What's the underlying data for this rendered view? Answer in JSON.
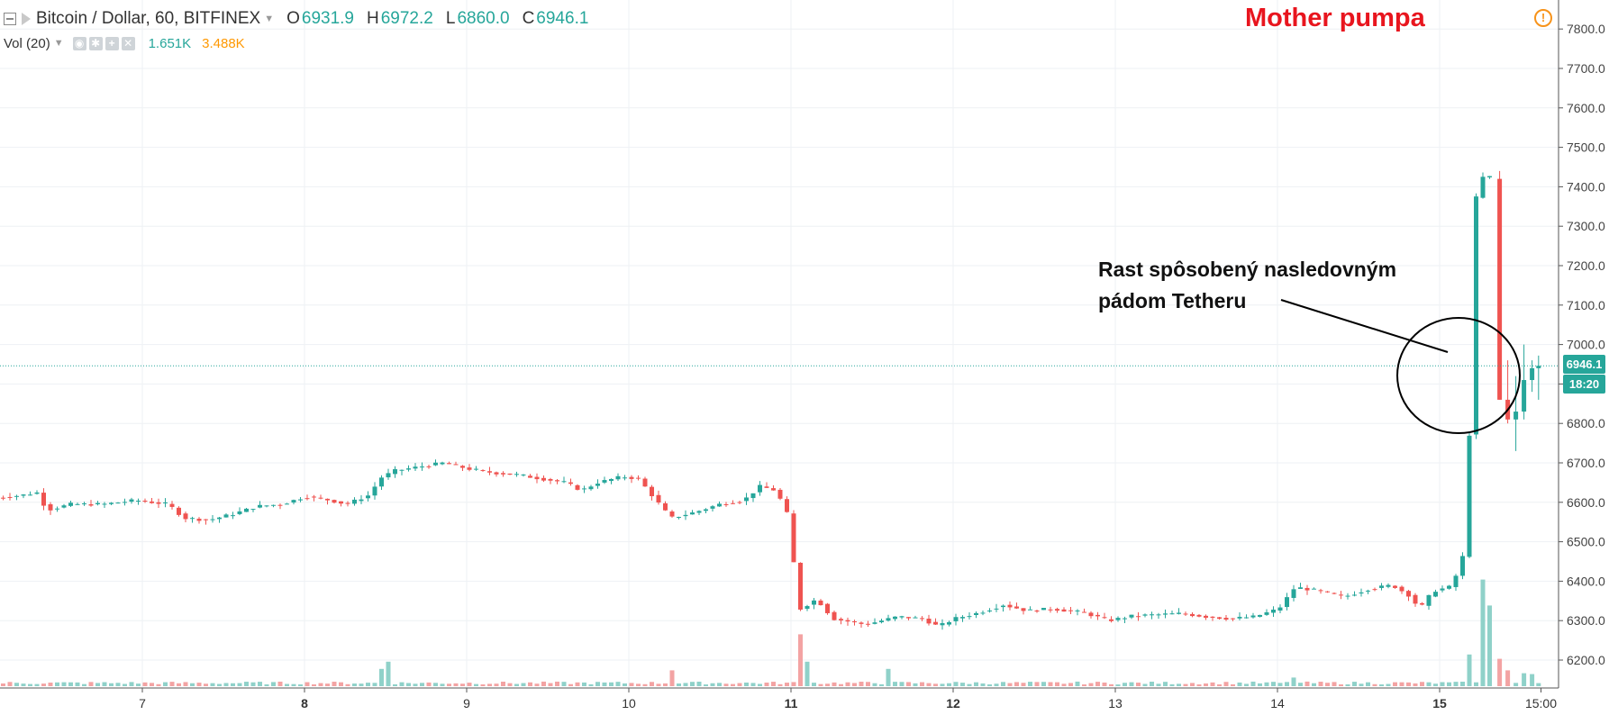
{
  "legend": {
    "symbol": "Bitcoin / Dollar, 60, BITFINEX",
    "open_label": "O",
    "open": "6931.9",
    "high_label": "H",
    "high": "6972.2",
    "low_label": "L",
    "low": "6860.0",
    "close_label": "C",
    "close": "6946.1",
    "volume_label": "Vol (20)",
    "volume_value": "1.651K",
    "volume_ma": "3.488K"
  },
  "annotations": {
    "title": "Mother pumpa",
    "line1": "Rast spôsobený nasledovným",
    "line2": "pádom Tetheru"
  },
  "price_axis": {
    "last_price_label": "6946.1",
    "countdown_label": "18:20"
  },
  "colors": {
    "up": "#26a69a",
    "down": "#ef5350",
    "up_volume": "#8fd1c9",
    "down_volume": "#f3a3a3",
    "annotation_red": "#e8151e"
  },
  "chart_data": {
    "type": "candlestick",
    "timeframe": "60",
    "exchange": "BITFINEX",
    "ylim": [
      6120,
      7850
    ],
    "y_ticks": [
      6200,
      6300,
      6400,
      6500,
      6600,
      6700,
      6800,
      6900,
      7000,
      7100,
      7200,
      7300,
      7400,
      7500,
      7600,
      7700,
      7800
    ],
    "x_ticks": [
      {
        "label": "7",
        "day": 7
      },
      {
        "label": "8",
        "day": 8
      },
      {
        "label": "9",
        "day": 9
      },
      {
        "label": "10",
        "day": 10
      },
      {
        "label": "11",
        "day": 11
      },
      {
        "label": "12",
        "day": 12
      },
      {
        "label": "13",
        "day": 13
      },
      {
        "label": "14",
        "day": 14
      },
      {
        "label": "15",
        "day": 15
      },
      {
        "label": "15:00",
        "day": 15.625
      }
    ],
    "bold_days": [
      8,
      11,
      12,
      15
    ],
    "last_price": 6946.1,
    "price_path": [
      [
        6.1,
        6610
      ],
      [
        6.3,
        6618
      ],
      [
        6.4,
        6625
      ],
      [
        6.45,
        6580
      ],
      [
        6.6,
        6595
      ],
      [
        6.8,
        6595
      ],
      [
        7.0,
        6605
      ],
      [
        7.2,
        6595
      ],
      [
        7.3,
        6560
      ],
      [
        7.45,
        6555
      ],
      [
        7.6,
        6570
      ],
      [
        7.75,
        6590
      ],
      [
        7.9,
        6595
      ],
      [
        8.05,
        6615
      ],
      [
        8.2,
        6605
      ],
      [
        8.3,
        6595
      ],
      [
        8.45,
        6620
      ],
      [
        8.5,
        6660
      ],
      [
        8.6,
        6680
      ],
      [
        8.75,
        6690
      ],
      [
        8.9,
        6700
      ],
      [
        9.05,
        6685
      ],
      [
        9.2,
        6675
      ],
      [
        9.35,
        6670
      ],
      [
        9.5,
        6660
      ],
      [
        9.65,
        6650
      ],
      [
        9.75,
        6630
      ],
      [
        9.85,
        6650
      ],
      [
        10.0,
        6665
      ],
      [
        10.1,
        6660
      ],
      [
        10.2,
        6610
      ],
      [
        10.3,
        6560
      ],
      [
        10.45,
        6575
      ],
      [
        10.6,
        6595
      ],
      [
        10.75,
        6605
      ],
      [
        10.85,
        6640
      ],
      [
        10.95,
        6630
      ],
      [
        11.03,
        6560
      ],
      [
        11.07,
        6400
      ],
      [
        11.1,
        6330
      ],
      [
        11.2,
        6355
      ],
      [
        11.3,
        6305
      ],
      [
        11.5,
        6290
      ],
      [
        11.7,
        6310
      ],
      [
        11.85,
        6305
      ],
      [
        11.95,
        6285
      ],
      [
        12.05,
        6305
      ],
      [
        12.2,
        6320
      ],
      [
        12.35,
        6340
      ],
      [
        12.5,
        6325
      ],
      [
        12.65,
        6330
      ],
      [
        12.85,
        6320
      ],
      [
        13.0,
        6300
      ],
      [
        13.15,
        6312
      ],
      [
        13.3,
        6315
      ],
      [
        13.45,
        6318
      ],
      [
        13.6,
        6310
      ],
      [
        13.75,
        6305
      ],
      [
        13.9,
        6310
      ],
      [
        14.05,
        6330
      ],
      [
        14.15,
        6385
      ],
      [
        14.3,
        6375
      ],
      [
        14.45,
        6360
      ],
      [
        14.6,
        6380
      ],
      [
        14.75,
        6390
      ],
      [
        14.85,
        6365
      ],
      [
        14.92,
        6330
      ],
      [
        15.0,
        6375
      ],
      [
        15.1,
        6385
      ],
      [
        15.18,
        6440
      ],
      [
        15.22,
        6700
      ],
      [
        15.27,
        7420
      ],
      [
        15.32,
        7425
      ]
    ],
    "final_candles": [
      {
        "day": 15.37,
        "open": 7420,
        "high": 7440,
        "low": 6860,
        "close": 6860
      },
      {
        "day": 15.42,
        "open": 6860,
        "high": 6960,
        "low": 6800,
        "close": 6810
      },
      {
        "day": 15.47,
        "open": 6810,
        "high": 6920,
        "low": 6730,
        "close": 6830
      },
      {
        "day": 15.52,
        "open": 6830,
        "high": 7000,
        "low": 6810,
        "close": 6910
      },
      {
        "day": 15.57,
        "open": 6910,
        "high": 6960,
        "low": 6880,
        "close": 6940
      },
      {
        "day": 15.61,
        "open": 6940,
        "high": 6972,
        "low": 6860,
        "close": 6946
      }
    ],
    "volume_spikes": [
      {
        "day": 8.48,
        "value": 60
      },
      {
        "day": 8.52,
        "value": 85
      },
      {
        "day": 10.25,
        "value": 55
      },
      {
        "day": 11.05,
        "value": 180
      },
      {
        "day": 11.1,
        "value": 85
      },
      {
        "day": 11.6,
        "value": 60
      },
      {
        "day": 14.1,
        "value": 30
      },
      {
        "day": 15.2,
        "value": 110
      },
      {
        "day": 15.25,
        "value": 370
      },
      {
        "day": 15.3,
        "value": 280
      },
      {
        "day": 15.35,
        "value": 95
      },
      {
        "day": 15.42,
        "value": 55
      },
      {
        "day": 15.5,
        "value": 45
      },
      {
        "day": 15.55,
        "value": 42
      }
    ]
  }
}
